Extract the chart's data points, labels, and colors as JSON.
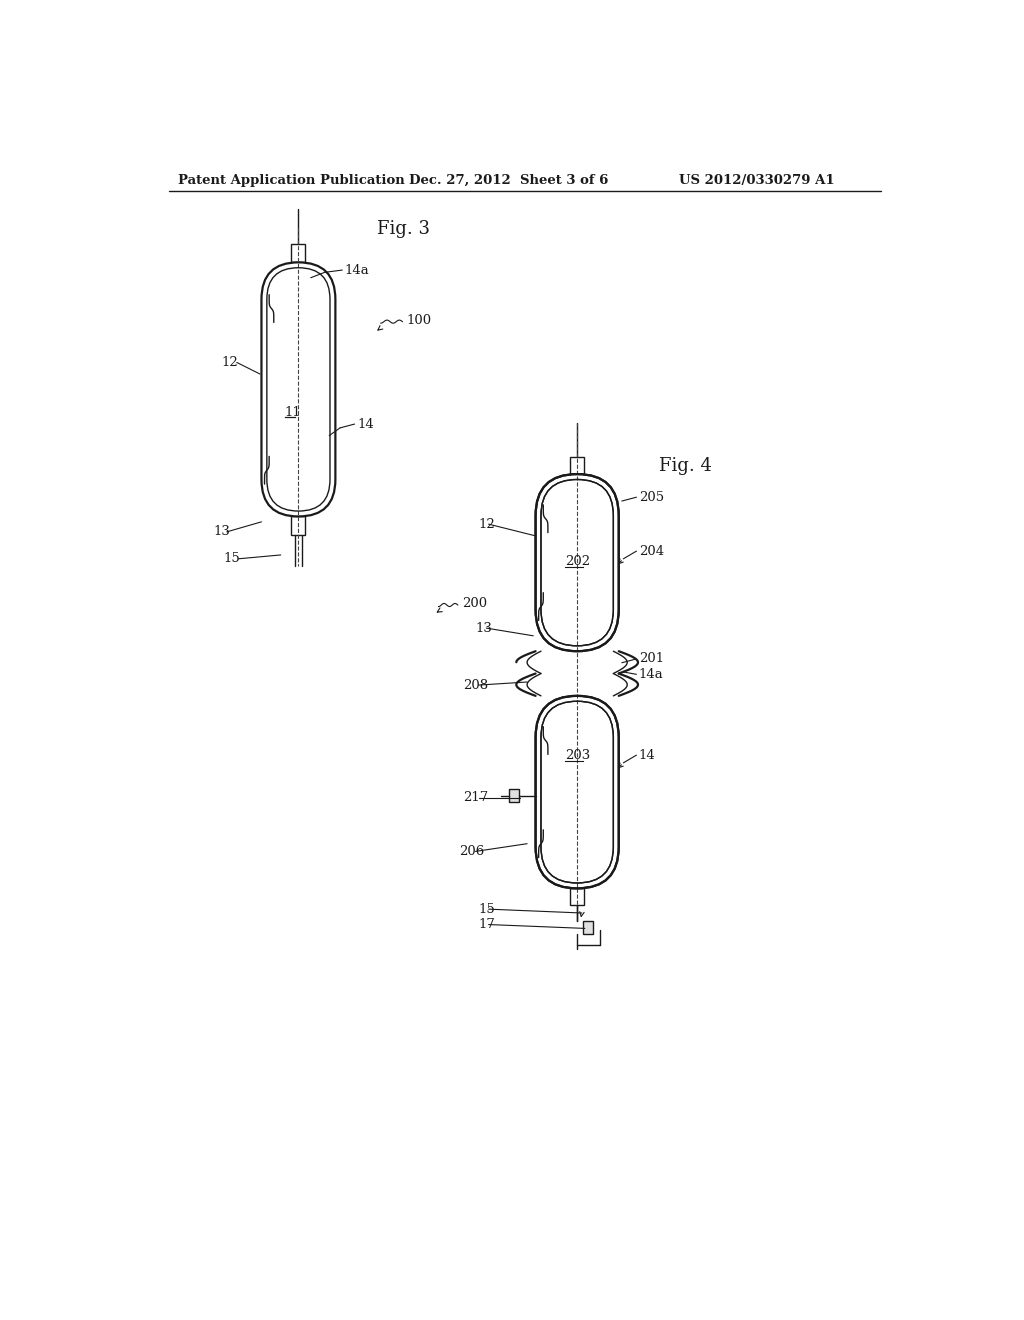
{
  "bg_color": "#ffffff",
  "line_color": "#1a1a1a",
  "header_left": "Patent Application Publication",
  "header_mid": "Dec. 27, 2012  Sheet 3 of 6",
  "header_right": "US 2012/0330279 A1",
  "fig3_label": "Fig. 3",
  "fig4_label": "Fig. 4"
}
